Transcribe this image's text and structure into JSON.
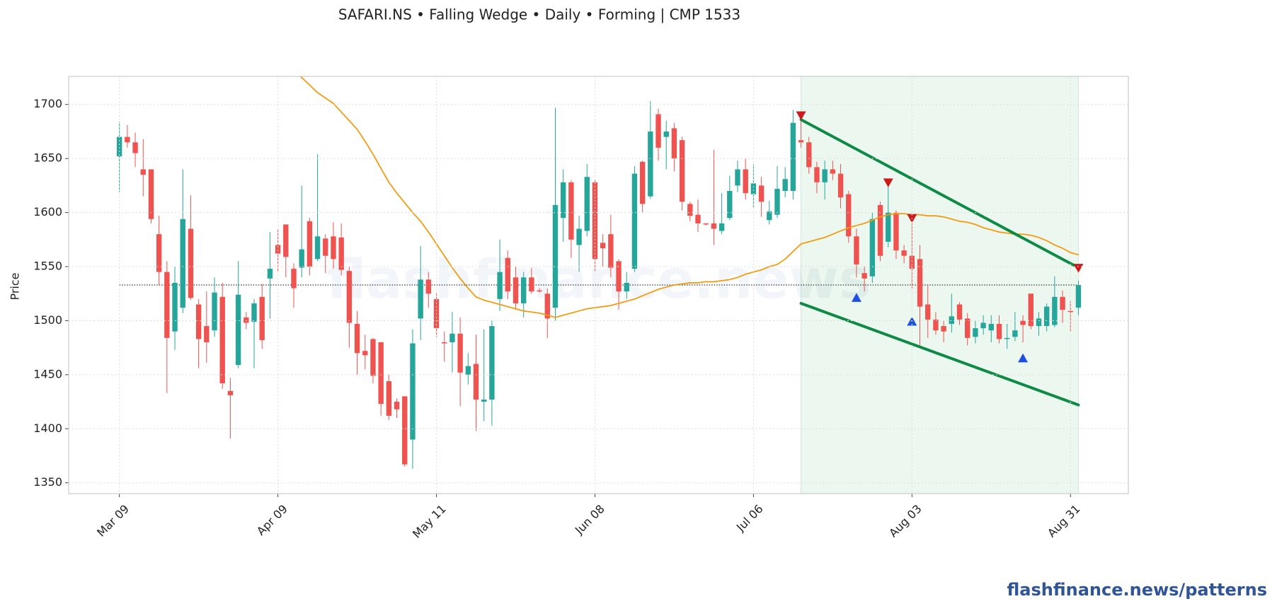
{
  "chart_data": {
    "type": "candlestick",
    "title": "SAFARI.NS  •  Falling Wedge  •  Daily  •  Forming  |  CMP 1533",
    "ylabel": "Price",
    "watermark": "flashfinance.news",
    "footer": "flashfinance.news/patterns",
    "categories": [
      "Mar 09",
      null,
      null,
      null,
      null,
      null,
      null,
      null,
      null,
      null,
      null,
      null,
      null,
      null,
      null,
      null,
      null,
      null,
      null,
      null,
      "Apr 09",
      null,
      null,
      null,
      null,
      null,
      null,
      null,
      null,
      null,
      null,
      null,
      null,
      null,
      null,
      null,
      null,
      null,
      null,
      null,
      "May 11",
      null,
      null,
      null,
      null,
      null,
      null,
      null,
      null,
      null,
      null,
      null,
      null,
      null,
      null,
      null,
      null,
      null,
      null,
      null,
      "Jun 08",
      null,
      null,
      null,
      null,
      null,
      null,
      null,
      null,
      null,
      null,
      null,
      null,
      null,
      null,
      null,
      null,
      null,
      null,
      null,
      "Jul 06",
      null,
      null,
      null,
      null,
      null,
      null,
      null,
      null,
      null,
      null,
      null,
      null,
      null,
      null,
      null,
      null,
      null,
      null,
      null,
      "Aug 03",
      null,
      null,
      null,
      null,
      null,
      null,
      null,
      null,
      null,
      null,
      null,
      null,
      null,
      null,
      null,
      null,
      null,
      null,
      null,
      "Aug 31",
      null
    ],
    "open": [
      1652,
      1670,
      1665,
      1640,
      1640,
      1580,
      1545,
      1490,
      1512,
      1585,
      1515,
      1495,
      1491,
      1522,
      1435,
      1459,
      1503,
      1499,
      1522,
      1539,
      1570,
      1589,
      1548,
      1549,
      1592,
      1557,
      1576,
      1578,
      1577,
      1546,
      1497,
      1472,
      1483,
      1480,
      1444,
      1425,
      1430,
      1390,
      1502,
      1538,
      1520,
      1480,
      1480,
      1488,
      1450,
      1460,
      1425,
      1427,
      1520,
      1558,
      1540,
      1516,
      1540,
      1528,
      1525,
      1512,
      1595,
      1628,
      1570,
      1583,
      1628,
      1572,
      1580,
      1555,
      1527,
      1548,
      1647,
      1615,
      1691,
      1670,
      1678,
      1667,
      1608,
      1598,
      1590,
      1590,
      1583,
      1595,
      1625,
      1640,
      1617,
      1625,
      1593,
      1598,
      1620,
      1620,
      1667,
      1665,
      1642,
      1628,
      1640,
      1636,
      1617,
      1578,
      1544,
      1541,
      1607,
      1573,
      1600,
      1565,
      1560,
      1557,
      1515,
      1501,
      1495,
      1497,
      1515,
      1502,
      1485,
      1493,
      1491,
      1497,
      1483,
      1485,
      1500,
      1525,
      1495,
      1495,
      1496,
      1522,
      1509,
      1512
    ],
    "high": [
      1684,
      1681,
      1674,
      1668,
      1640,
      1597,
      1555,
      1550,
      1640,
      1616,
      1520,
      1527,
      1540,
      1535,
      1447,
      1555,
      1508,
      1520,
      1534,
      1582,
      1585,
      1589,
      1553,
      1625,
      1595,
      1654,
      1580,
      1591,
      1590,
      1550,
      1509,
      1487,
      1484,
      1480,
      1450,
      1428,
      1430,
      1492,
      1569,
      1545,
      1525,
      1490,
      1508,
      1503,
      1470,
      1487,
      1492,
      1500,
      1575,
      1565,
      1550,
      1545,
      1549,
      1530,
      1530,
      1697,
      1640,
      1630,
      1597,
      1645,
      1630,
      1580,
      1598,
      1557,
      1545,
      1643,
      1648,
      1703,
      1696,
      1685,
      1683,
      1670,
      1610,
      1612,
      1590,
      1658,
      1618,
      1634,
      1648,
      1650,
      1645,
      1633,
      1611,
      1643,
      1642,
      1695,
      1692,
      1670,
      1647,
      1648,
      1648,
      1645,
      1620,
      1585,
      1550,
      1600,
      1610,
      1625,
      1602,
      1570,
      1590,
      1570,
      1533,
      1508,
      1500,
      1525,
      1517,
      1507,
      1500,
      1505,
      1505,
      1505,
      1497,
      1508,
      1505,
      1525,
      1508,
      1516,
      1541,
      1528,
      1518,
      1537
    ],
    "low": [
      1619,
      1660,
      1642,
      1615,
      1590,
      1533,
      1433,
      1473,
      1507,
      1519,
      1456,
      1461,
      1485,
      1437,
      1391,
      1456,
      1492,
      1456,
      1474,
      1502,
      1545,
      1540,
      1512,
      1540,
      1542,
      1555,
      1544,
      1548,
      1542,
      1475,
      1450,
      1455,
      1442,
      1412,
      1408,
      1410,
      1365,
      1363,
      1482,
      1512,
      1485,
      1462,
      1452,
      1421,
      1441,
      1398,
      1407,
      1403,
      1509,
      1520,
      1510,
      1503,
      1525,
      1526,
      1484,
      1500,
      1573,
      1558,
      1545,
      1578,
      1545,
      1550,
      1540,
      1510,
      1520,
      1545,
      1600,
      1613,
      1648,
      1640,
      1638,
      1602,
      1592,
      1582,
      1588,
      1570,
      1580,
      1593,
      1619,
      1612,
      1605,
      1596,
      1589,
      1595,
      1614,
      1612,
      1660,
      1636,
      1618,
      1612,
      1630,
      1604,
      1572,
      1540,
      1527,
      1535,
      1555,
      1568,
      1557,
      1553,
      1530,
      1476,
      1484,
      1487,
      1480,
      1489,
      1496,
      1477,
      1479,
      1487,
      1480,
      1479,
      1474,
      1481,
      1480,
      1492,
      1486,
      1490,
      1494,
      1498,
      1490,
      1505
    ],
    "close": [
      1670,
      1665,
      1655,
      1635,
      1594,
      1545,
      1484,
      1535,
      1594,
      1521,
      1483,
      1480,
      1526,
      1442,
      1431,
      1524,
      1498,
      1516,
      1482,
      1548,
      1562,
      1559,
      1530,
      1566,
      1550,
      1578,
      1560,
      1557,
      1547,
      1498,
      1470,
      1468,
      1449,
      1423,
      1412,
      1418,
      1367,
      1479,
      1538,
      1525,
      1493,
      1479,
      1488,
      1452,
      1458,
      1427,
      1427,
      1495,
      1545,
      1527,
      1516,
      1540,
      1527,
      1527,
      1502,
      1607,
      1628,
      1575,
      1585,
      1633,
      1557,
      1567,
      1549,
      1527,
      1535,
      1636,
      1608,
      1675,
      1660,
      1675,
      1650,
      1610,
      1597,
      1590,
      1589,
      1585,
      1590,
      1620,
      1640,
      1618,
      1627,
      1610,
      1601,
      1622,
      1631,
      1683,
      1665,
      1642,
      1628,
      1640,
      1636,
      1614,
      1578,
      1552,
      1539,
      1594,
      1560,
      1600,
      1565,
      1560,
      1548,
      1513,
      1501,
      1491,
      1490,
      1504,
      1501,
      1484,
      1493,
      1498,
      1497,
      1483,
      1484,
      1491,
      1496,
      1495,
      1502,
      1513,
      1522,
      1510,
      1508,
      1533
    ],
    "up_color": "#26a69a",
    "down_color": "#ef5350",
    "sma": {
      "color": "#f39c12",
      "values": [
        null,
        null,
        null,
        null,
        null,
        null,
        null,
        null,
        null,
        null,
        null,
        null,
        null,
        null,
        null,
        null,
        null,
        null,
        null,
        null,
        null,
        null,
        1732,
        1725,
        1718,
        1711,
        1706,
        1701,
        1693,
        1685,
        1677,
        1666,
        1654,
        1641,
        1628,
        1618,
        1609,
        1600,
        1592,
        1582,
        1571,
        1560,
        1549,
        1539,
        1530,
        1522,
        1519,
        1517,
        1515,
        1513,
        1511,
        1509,
        1508,
        1507,
        1505,
        1503,
        1505,
        1507,
        1509,
        1511,
        1512,
        1513,
        1514,
        1516,
        1518,
        1520,
        1523,
        1526,
        1529,
        1531,
        1533,
        1534,
        1535,
        1535,
        1536,
        1536,
        1537,
        1538,
        1540,
        1543,
        1545,
        1547,
        1550,
        1552,
        1557,
        1564,
        1571,
        1573,
        1575,
        1577,
        1580,
        1583,
        1586,
        1588,
        1590,
        1593,
        1596,
        1598,
        1599,
        1599,
        1598,
        1598,
        1597,
        1597,
        1596,
        1594,
        1592,
        1591,
        1589,
        1586,
        1584,
        1582,
        1581,
        1580,
        1580,
        1579,
        1577,
        1574,
        1570,
        1567,
        1563,
        1561
      ]
    },
    "cmp": 1533,
    "cmp_color": "#333333",
    "zone": [
      86,
      121
    ],
    "zone_color": "#e3f3e8",
    "wedge_color": "#0e8a45",
    "wedge_upper": {
      "x": [
        86,
        121
      ],
      "y": [
        1686,
        1549
      ]
    },
    "wedge_lower": {
      "x": [
        86,
        121
      ],
      "y": [
        1516,
        1422
      ]
    },
    "pivot_highs": {
      "color": "#cc1a1a",
      "x": [
        86,
        97,
        100,
        121
      ],
      "y": [
        1689,
        1627,
        1594,
        1548
      ]
    },
    "pivot_lows": {
      "color": "#1f4fe0",
      "x": [
        93,
        100,
        114
      ],
      "y": [
        1522,
        1500,
        1466
      ]
    },
    "xlim": [
      -6.4,
      127.3
    ],
    "ylim": [
      1340,
      1726
    ],
    "yticks": [
      1350,
      1400,
      1450,
      1500,
      1550,
      1600,
      1650,
      1700
    ],
    "grid": true
  }
}
